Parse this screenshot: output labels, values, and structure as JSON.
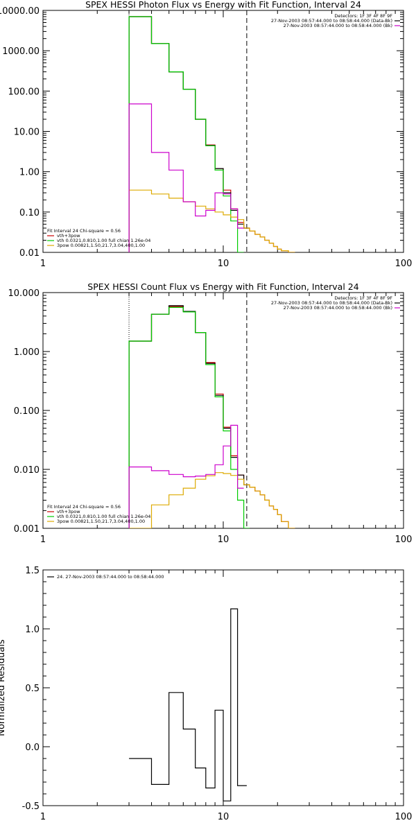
{
  "chart_data": [
    {
      "type": "line",
      "title": "SPEX HESSI Photon Flux vs Energy with Fit Function, Interval 24",
      "x_scale": "log",
      "y_scale": "log",
      "xlim": [
        1,
        100
      ],
      "ylim": [
        0.01,
        10000
      ],
      "x_ticks": [
        1,
        10,
        100
      ],
      "x_tick_labels": [
        "1",
        "10",
        "100"
      ],
      "y_ticks": [
        0.01,
        0.1,
        1,
        10,
        100,
        1000,
        10000
      ],
      "y_tick_labels": [
        "0.01",
        "0.10",
        "1.00",
        "10.00",
        "100.00",
        "1000.00",
        "10000.00"
      ],
      "vlines": [
        {
          "x": 3,
          "style": "dotted"
        },
        {
          "x": 13.5,
          "style": "dashed"
        }
      ],
      "header_lines": [
        "Detectors: 1F 3F 4F 8F 9F",
        "27-Nov-2003 08:57:44.000 to 08:58:44.000 (Data-Bk)",
        "27-Nov-2003 08:57:44.000 to 08:58:44.000 (Bk)"
      ],
      "header_colors": [
        "",
        "#000000",
        "#cc00cc"
      ],
      "legend_lines": [
        "Fit Interval 24   Chi-square = 0.56",
        "vth+3pow",
        "vth 0.0321,0.810,1.00  full chian 1.26e-04",
        "3pow 0.00821,1.50,21.7,3.04,400,1.00"
      ],
      "legend_colors": [
        "",
        "#cc0000",
        "#00cc00",
        "#ddaa00"
      ],
      "edges": [
        3,
        4,
        5,
        6,
        7,
        8,
        9,
        10,
        11,
        12,
        13,
        14,
        15,
        16,
        17,
        18,
        19,
        20,
        21,
        23,
        25
      ],
      "series": [
        {
          "name": "vth+3pow",
          "color": "#cc0000",
          "values": [
            7000,
            1500,
            300,
            110,
            20,
            4.6,
            1.2,
            0.35,
            0.12,
            0.055,
            0.04,
            0.034,
            0.028,
            0.024,
            0.02,
            0.017,
            0.014,
            0.012,
            0.011,
            0.01
          ]
        },
        {
          "name": "black",
          "color": "#000000",
          "values": [
            7000,
            1500,
            300,
            110,
            20,
            4.5,
            1.2,
            0.3,
            0.11,
            0.05,
            0.04,
            null,
            null,
            null,
            null,
            null,
            null,
            null,
            null,
            null
          ]
        },
        {
          "name": "vth 0.0321,0.810,1.00  full chian 1.26e-04",
          "color": "#00cc00",
          "values": [
            7000,
            1500,
            300,
            110,
            20,
            4.4,
            1.1,
            0.25,
            0.06,
            0.01,
            null,
            null,
            null,
            null,
            null,
            null,
            null,
            null,
            null,
            null
          ]
        },
        {
          "name": "3pow 0.00821,1.50,21.7,3.04,400,1.00",
          "color": "#ddaa00",
          "values": [
            0.35,
            0.28,
            0.22,
            0.18,
            0.14,
            0.12,
            0.1,
            0.085,
            0.075,
            0.065,
            0.04,
            0.034,
            0.028,
            0.024,
            0.02,
            0.017,
            0.014,
            0.012,
            0.011,
            0.01
          ]
        },
        {
          "name": "magenta",
          "color": "#cc00cc",
          "values": [
            48,
            3,
            1.1,
            0.18,
            0.08,
            0.11,
            0.3,
            0.28,
            0.12,
            0.04,
            null,
            null,
            null,
            null,
            null,
            null,
            null,
            null,
            null,
            null
          ]
        }
      ]
    },
    {
      "type": "line",
      "title": "SPEX HESSI Count Flux vs Energy with Fit Function, Interval 24",
      "x_scale": "log",
      "y_scale": "log",
      "xlim": [
        1,
        100
      ],
      "ylim": [
        0.001,
        10
      ],
      "x_ticks": [
        1,
        10,
        100
      ],
      "x_tick_labels": [
        "1",
        "10",
        "100"
      ],
      "y_ticks": [
        0.001,
        0.01,
        0.1,
        1,
        10
      ],
      "y_tick_labels": [
        "0.001",
        "0.010",
        "0.100",
        "1.000",
        "10.000"
      ],
      "vlines": [
        {
          "x": 3,
          "style": "dotted"
        },
        {
          "x": 13.5,
          "style": "dashed"
        }
      ],
      "header_lines": [
        "Detectors: 1F 3F 4F 8F 9F",
        "27-Nov-2003 08:57:44.000 to 08:58:44.000 (Data-Bk)",
        "27-Nov-2003 08:57:44.000 to 08:58:44.000 (Bk)"
      ],
      "header_colors": [
        "",
        "#000000",
        "#cc00cc"
      ],
      "legend_lines": [
        "Fit Interval 24   Chi-square = 0.56",
        "vth+3pow",
        "vth 0.0321,0.810,1.00  full chian 1.26e-04",
        "3pow 0.00821,1.50,21.7,3.04,400,1.00"
      ],
      "legend_colors": [
        "",
        "#cc0000",
        "#00cc00",
        "#ddaa00"
      ],
      "edges": [
        3,
        4,
        5,
        6,
        7,
        8,
        9,
        10,
        11,
        12,
        13,
        14,
        15,
        16,
        17,
        18,
        19,
        20,
        21,
        23,
        25
      ],
      "series": [
        {
          "name": "vth+3pow",
          "color": "#cc0000",
          "values": [
            1.5,
            4.3,
            5.8,
            4.8,
            2.1,
            0.65,
            0.19,
            0.052,
            0.017,
            0.008,
            0.0055,
            0.005,
            0.0043,
            0.0037,
            0.003,
            0.0024,
            0.0021,
            0.0017,
            0.0013,
            0.001
          ]
        },
        {
          "name": "black",
          "color": "#000000",
          "values": [
            1.5,
            4.3,
            6.0,
            4.8,
            2.1,
            0.63,
            0.18,
            0.05,
            0.016,
            0.008,
            0.0055,
            null,
            null,
            null,
            null,
            null,
            null,
            null,
            null,
            null
          ]
        },
        {
          "name": "vth 0.0321,0.810,1.00  full chian 1.26e-04",
          "color": "#00cc00",
          "values": [
            1.5,
            4.3,
            5.6,
            4.7,
            2.1,
            0.6,
            0.17,
            0.045,
            0.01,
            0.003,
            0.001,
            null,
            null,
            null,
            null,
            null,
            null,
            null,
            null,
            null
          ]
        },
        {
          "name": "3pow 0.00821,1.50,21.7,3.04,400,1.00",
          "color": "#ddaa00",
          "values": [
            0.001,
            0.0025,
            0.0037,
            0.0048,
            0.0068,
            0.0078,
            0.0088,
            0.0085,
            0.0079,
            0.0068,
            0.0055,
            0.005,
            0.0043,
            0.0037,
            0.003,
            0.0024,
            0.0021,
            0.0017,
            0.0013,
            0.001
          ]
        },
        {
          "name": "magenta",
          "color": "#cc00cc",
          "values": [
            0.011,
            0.0095,
            0.0082,
            0.0075,
            0.0077,
            0.0082,
            0.012,
            0.025,
            0.056,
            0.0048,
            null,
            null,
            null,
            null,
            null,
            null,
            null,
            null,
            null,
            null
          ]
        }
      ]
    },
    {
      "type": "line",
      "title": "",
      "x_scale": "log",
      "y_scale": "linear",
      "xlim": [
        1,
        100
      ],
      "ylim": [
        -0.5,
        1.5
      ],
      "ylabel": "Normalized Residuals",
      "x_ticks": [
        1,
        10,
        100
      ],
      "x_tick_labels": [
        "1",
        "10",
        "100"
      ],
      "y_ticks": [
        -0.5,
        0,
        0.5,
        1,
        1.5
      ],
      "y_tick_labels": [
        "-0.5",
        "0.0",
        "0.5",
        "1.0",
        "1.5"
      ],
      "legend_lines": [
        "24. 27-Nov-2003 08:57:44.000 to 08:58:44.000"
      ],
      "legend_colors": [
        "#000000"
      ],
      "edges": [
        3,
        4,
        5,
        6,
        7,
        8,
        9,
        10,
        11,
        12,
        13.5
      ],
      "series": [
        {
          "name": "24. 27-Nov-2003 08:57:44.000 to 08:58:44.000",
          "color": "#000000",
          "values": [
            -0.1,
            -0.32,
            0.46,
            0.15,
            -0.18,
            -0.35,
            0.31,
            -0.46,
            1.17,
            -0.33
          ]
        }
      ]
    }
  ]
}
